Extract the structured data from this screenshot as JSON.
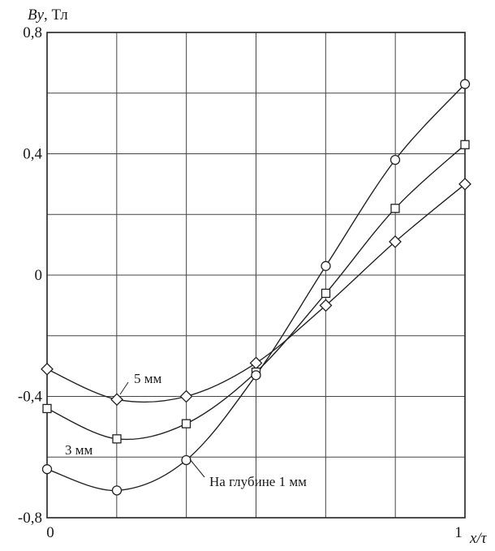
{
  "chart_data": {
    "type": "line",
    "ylabel_italic": "By",
    "ylabel_unit": ", Тл",
    "xlabel_italic": "x/τ",
    "xlim": [
      0,
      1
    ],
    "ylim": [
      -0.8,
      0.8
    ],
    "x_ticks": [
      "0",
      "1"
    ],
    "y_ticks": [
      "0,8",
      "0,4",
      "0",
      "-0,4",
      "-0,8"
    ],
    "y_tick_values": [
      0.8,
      0.4,
      0,
      -0.4,
      -0.8
    ],
    "grid": true,
    "x": [
      0,
      0.167,
      0.333,
      0.5,
      0.667,
      0.833,
      1.0
    ],
    "series": [
      {
        "name": "5 мм",
        "marker": "diamond",
        "values": [
          -0.31,
          -0.41,
          -0.4,
          -0.29,
          -0.1,
          0.11,
          0.3
        ]
      },
      {
        "name": "3 мм",
        "marker": "square",
        "values": [
          -0.44,
          -0.54,
          -0.49,
          -0.32,
          -0.06,
          0.22,
          0.43
        ]
      },
      {
        "name": "На глубине 1 мм",
        "marker": "circle",
        "values": [
          -0.64,
          -0.71,
          -0.61,
          -0.33,
          0.03,
          0.38,
          0.63
        ]
      }
    ]
  }
}
